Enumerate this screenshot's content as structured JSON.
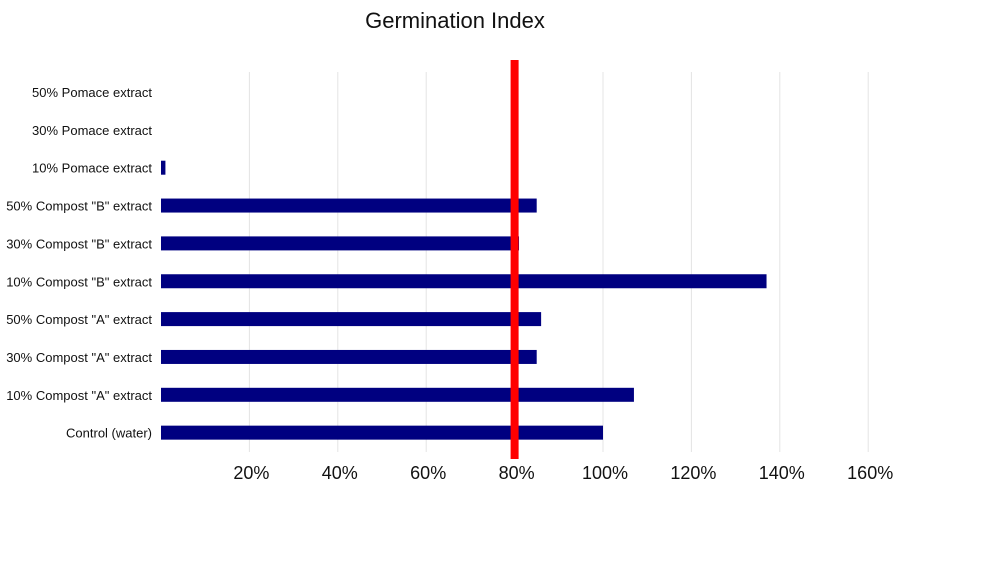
{
  "chart_data": {
    "type": "bar",
    "orientation": "horizontal",
    "title": "Germination Index",
    "xlabel": "",
    "ylabel": "",
    "categories": [
      "Control (water)",
      "10% Compost \"A\" extract",
      "30% Compost \"A\" extract",
      "50% Compost \"A\" extract",
      "10% Compost \"B\" extract",
      "30% Compost \"B\" extract",
      "50% Compost \"B\" extract",
      "10% Pomace extract",
      "30% Pomace extract",
      "50% Pomace extract"
    ],
    "values": [
      100,
      107,
      85,
      86,
      137,
      81,
      85,
      1,
      0,
      0
    ],
    "xlim": [
      0,
      160
    ],
    "x_ticks": [
      20,
      40,
      60,
      80,
      100,
      120,
      140,
      160
    ],
    "x_tick_labels": [
      "20%",
      "40%",
      "60%",
      "80%",
      "100%",
      "120%",
      "140%",
      "160%"
    ],
    "threshold": 80,
    "grid": true,
    "legend": "none",
    "colors": {
      "bar": "#000080",
      "threshold": "#ff0000",
      "grid": "#e4e4e4",
      "text": "#111111"
    }
  }
}
